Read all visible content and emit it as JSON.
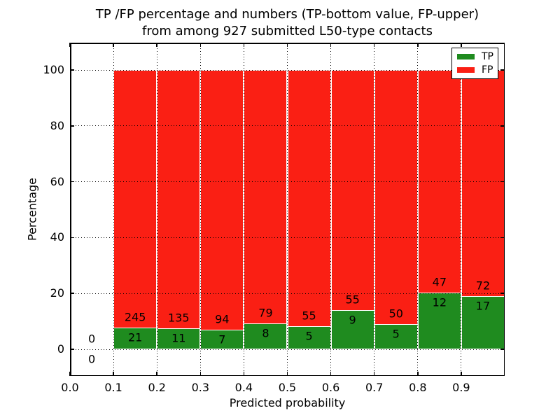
{
  "title": {
    "line1": "TP /FP percentage and numbers (TP-bottom value, FP-upper)",
    "line2": "from among 927 submitted L50-type contacts"
  },
  "chart_data": {
    "type": "bar",
    "stacked": true,
    "normalized_to_percent": true,
    "title": "TP /FP percentage and numbers (TP-bottom value, FP-upper) from among 927 submitted L50-type contacts",
    "xlabel": "Predicted probability",
    "ylabel": "Percentage",
    "xlim": [
      0.0,
      1.0
    ],
    "ylim": [
      -10,
      110
    ],
    "grid": true,
    "grid_style": "dotted",
    "legend_position": "upper right",
    "x_tick_labels": [
      "0.0",
      "0.1",
      "0.2",
      "0.3",
      "0.4",
      "0.5",
      "0.6",
      "0.7",
      "0.8",
      "0.9"
    ],
    "y_tick_labels": [
      "0",
      "20",
      "40",
      "60",
      "80",
      "100"
    ],
    "total_contacts": 927,
    "series": [
      {
        "name": "TP",
        "color": "#1f8b1f",
        "position": "bottom"
      },
      {
        "name": "FP",
        "color": "#fa1f14",
        "position": "top"
      }
    ],
    "bins": [
      {
        "x_start": 0.0,
        "x_end": 0.1,
        "tp": 0,
        "fp": 0
      },
      {
        "x_start": 0.1,
        "x_end": 0.2,
        "tp": 21,
        "fp": 245
      },
      {
        "x_start": 0.2,
        "x_end": 0.3,
        "tp": 11,
        "fp": 135
      },
      {
        "x_start": 0.3,
        "x_end": 0.4,
        "tp": 7,
        "fp": 94
      },
      {
        "x_start": 0.4,
        "x_end": 0.5,
        "tp": 8,
        "fp": 79
      },
      {
        "x_start": 0.5,
        "x_end": 0.6,
        "tp": 5,
        "fp": 55
      },
      {
        "x_start": 0.6,
        "x_end": 0.7,
        "tp": 9,
        "fp": 55
      },
      {
        "x_start": 0.7,
        "x_end": 0.8,
        "tp": 5,
        "fp": 50
      },
      {
        "x_start": 0.8,
        "x_end": 0.9,
        "tp": 12,
        "fp": 47
      },
      {
        "x_start": 0.9,
        "x_end": 1.0,
        "tp": 17,
        "fp": 72
      }
    ]
  }
}
